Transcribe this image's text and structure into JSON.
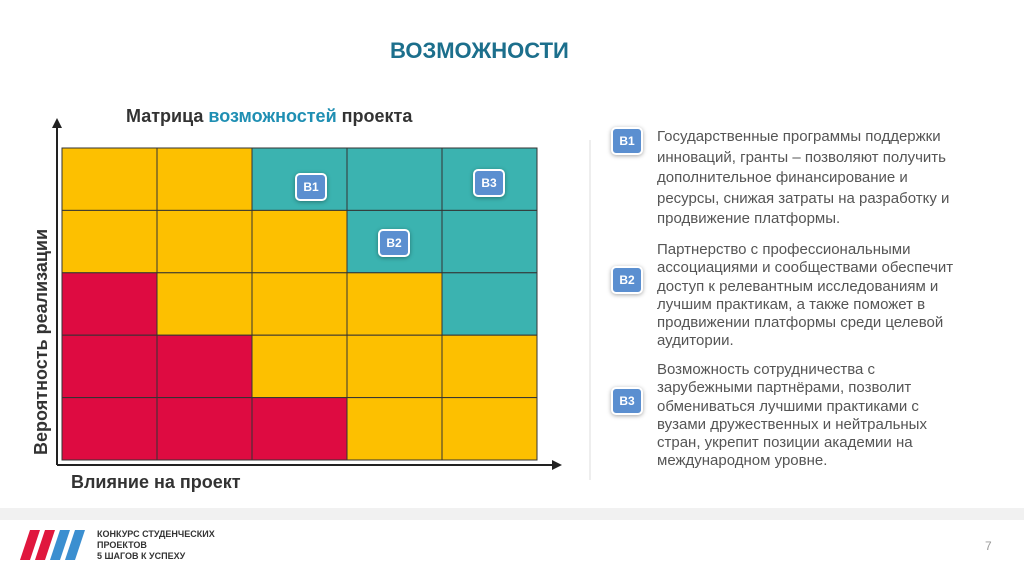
{
  "header": {
    "title": "ВОЗМОЖНОСТИ"
  },
  "matrix": {
    "title_start": "Матрица",
    "title_highlight": "возможностей",
    "title_end": "проекта",
    "y_label": "Вероятность реализации",
    "x_label": "Влияние на проект",
    "badges": [
      "B1",
      "B3",
      "B2"
    ]
  },
  "items": [
    {
      "badge": "B1",
      "lines": [
        "Государственные программы поддержки",
        "инноваций,  гранты – позволяют получить",
        "дополнительное финансирование и",
        "ресурсы, снижая затраты на разработку и",
        "продвижение платформы."
      ]
    },
    {
      "badge": "B2",
      "lines": [
        "Партнерство с профессиональными",
        "ассоциациями и сообществами обеспечит",
        "доступ к релевантным исследованиям и",
        "лучшим практикам, а также поможет в",
        "продвижении платформы среди целевой",
        "аудитории."
      ]
    },
    {
      "badge": "B3",
      "lines": [
        "Возможность сотрудничества с",
        "зарубежными партнёрами, позволит",
        "обмениваться лучшими практиками с",
        "вузами дружественных и нейтральных",
        "стран, укрепит позиции академии на",
        "международном уровне."
      ]
    }
  ],
  "footer": {
    "logo_lines": [
      "КОНКУРС СТУДЕНЧЕСКИХ",
      "ПРОЕКТОВ",
      "5 ШАГОВ К УСПЕХУ"
    ],
    "page": "7"
  }
}
